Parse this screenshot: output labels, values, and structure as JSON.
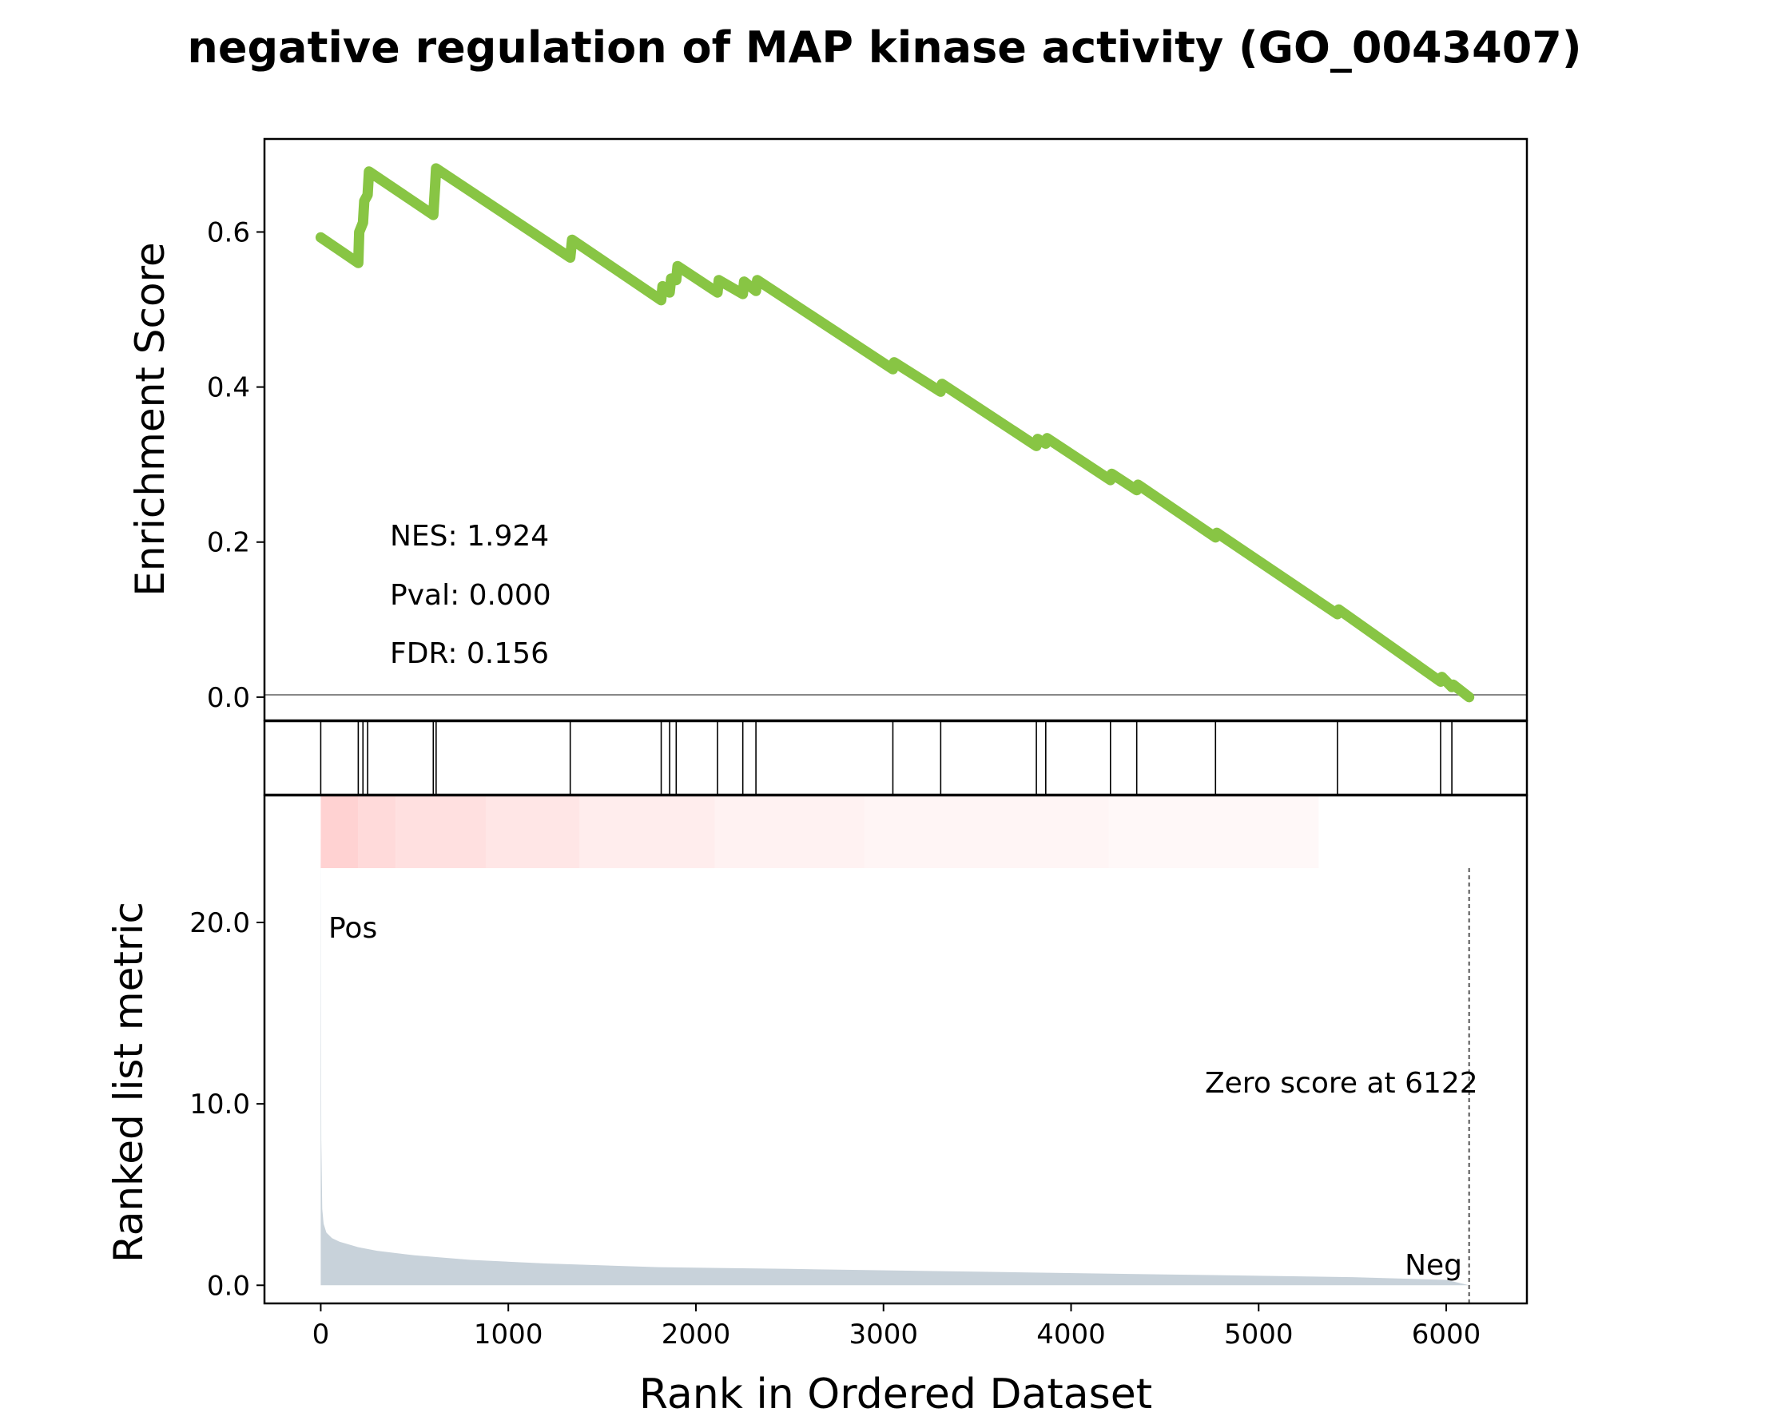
{
  "chart_data": {
    "type": "line",
    "title": "negative regulation of MAP kinase activity (GO_0043407)",
    "es_panel": {
      "ylabel": "Enrichment Score",
      "ylim": [
        -0.03,
        0.72
      ],
      "yticks": [
        0.0,
        0.2,
        0.4,
        0.6
      ],
      "ytick_labels": [
        "0.0",
        "0.2",
        "0.4",
        "0.6"
      ],
      "line_color": "#88c544",
      "series": [
        {
          "x": [
            0,
            200,
            205,
            225,
            232,
            250,
            257,
            600,
            610,
            615,
            1330,
            1340,
            1815,
            1822,
            1860,
            1868,
            1895,
            1902,
            2115,
            2122,
            2250,
            2257,
            2320,
            2327,
            3050,
            3057,
            3305,
            3312,
            3815,
            3822,
            3865,
            3872,
            4210,
            4217,
            4350,
            4357,
            4770,
            4777,
            5420,
            5427,
            5970,
            5977,
            6030,
            6037,
            6122
          ],
          "y": [
            0.593,
            0.56,
            0.6,
            0.612,
            0.64,
            0.648,
            0.678,
            0.622,
            0.66,
            0.682,
            0.567,
            0.59,
            0.512,
            0.53,
            0.522,
            0.54,
            0.538,
            0.556,
            0.522,
            0.538,
            0.52,
            0.536,
            0.524,
            0.538,
            0.423,
            0.432,
            0.394,
            0.404,
            0.324,
            0.333,
            0.327,
            0.334,
            0.28,
            0.288,
            0.267,
            0.274,
            0.206,
            0.212,
            0.107,
            0.113,
            0.02,
            0.026,
            0.013,
            0.016,
            0.0
          ]
        }
      ],
      "annotations": [
        "NES: 1.924",
        "Pval: 0.000",
        "FDR: 0.156"
      ]
    },
    "hits": [
      0,
      200,
      225,
      250,
      600,
      615,
      1330,
      1815,
      1860,
      1895,
      2115,
      2250,
      2320,
      3050,
      3305,
      3815,
      3865,
      4210,
      4350,
      4770,
      5420,
      5970,
      6030
    ],
    "heat_gradient": [
      {
        "x0": 0,
        "x1": 200,
        "color": "#ffd2d2"
      },
      {
        "x0": 200,
        "x1": 400,
        "color": "#ffdada"
      },
      {
        "x0": 400,
        "x1": 880,
        "color": "#ffe0e0"
      },
      {
        "x0": 880,
        "x1": 1380,
        "color": "#ffe6e6"
      },
      {
        "x0": 1380,
        "x1": 2100,
        "color": "#ffeded"
      },
      {
        "x0": 2100,
        "x1": 2900,
        "color": "#fff2f2"
      },
      {
        "x0": 2900,
        "x1": 4200,
        "color": "#fff5f5"
      },
      {
        "x0": 4200,
        "x1": 5320,
        "color": "#fff8f8"
      },
      {
        "x0": 5320,
        "x1": 6122,
        "color": "#ffffff"
      }
    ],
    "rank_panel": {
      "ylabel": "Ranked list metric",
      "xlabel": "Rank in Ordered Dataset",
      "xlim": [
        -300,
        6430
      ],
      "xticks": [
        0,
        1000,
        2000,
        3000,
        4000,
        5000,
        6000
      ],
      "xtick_labels": [
        "0",
        "1000",
        "2000",
        "3000",
        "4000",
        "5000",
        "6000"
      ],
      "ylim": [
        -1.0,
        27.0
      ],
      "yticks": [
        0.0,
        10.0,
        20.0
      ],
      "ytick_labels": [
        "0.0",
        "10.0",
        "20.0"
      ],
      "fill_color": "#c8d2da",
      "series": [
        {
          "x": [
            0,
            3,
            8,
            15,
            30,
            60,
            100,
            200,
            300,
            500,
            800,
            1200,
            1800,
            2500,
            3500,
            4500,
            5500,
            6000,
            6122
          ],
          "y": [
            24.8,
            8.0,
            4.2,
            3.4,
            2.9,
            2.6,
            2.4,
            2.1,
            1.9,
            1.65,
            1.4,
            1.2,
            1.0,
            0.9,
            0.75,
            0.6,
            0.45,
            0.3,
            0.0
          ]
        }
      ],
      "pos_label": "Pos",
      "neg_label": "Neg",
      "pos_color": "#ff0000",
      "neg_color": "#0000ff",
      "zero_score_label": "Zero score at 6122",
      "zero_score_x": 6122
    }
  }
}
